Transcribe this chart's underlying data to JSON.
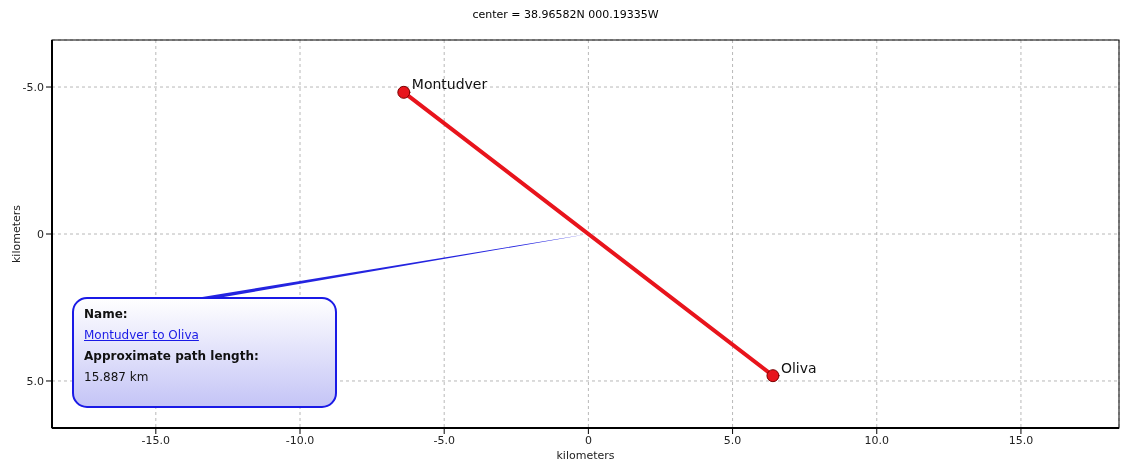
{
  "chart_data": {
    "type": "line",
    "title": "center = 38.96582N 000.19335W",
    "xlabel": "kilometers",
    "ylabel": "kilometers",
    "xlim": [
      -18.6,
      18.4
    ],
    "ylim": [
      6.6,
      -6.6
    ],
    "xticks": [
      {
        "value": -15,
        "label": "-15.0"
      },
      {
        "value": -10,
        "label": "-10.0"
      },
      {
        "value": -5,
        "label": "-5.0"
      },
      0,
      {
        "value": 5,
        "label": "5.0"
      },
      {
        "value": 10,
        "label": "10.0"
      },
      {
        "value": 15,
        "label": "15.0"
      }
    ],
    "yticks": [
      {
        "value": -5,
        "label": "-5.0"
      },
      0,
      {
        "value": 5,
        "label": "5.0"
      }
    ],
    "grid": true,
    "marker": "circle",
    "line_style": "solid",
    "series": [
      {
        "color": "#e8141c",
        "x": [
          -6.4,
          6.4
        ],
        "values": [
          -4.82,
          4.82
        ]
      }
    ],
    "annotations": [
      {
        "text": "Montudver",
        "x": -6.4,
        "y": -4.82
      },
      {
        "text": "Oliva",
        "x": 6.4,
        "y": 4.82
      },
      "Name:",
      "Montudver to Oliva",
      "Approximate path length:",
      "15.887 km"
    ]
  }
}
